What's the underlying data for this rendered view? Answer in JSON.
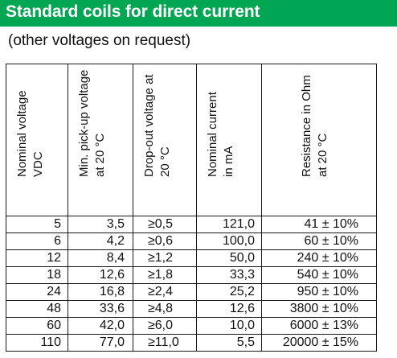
{
  "colors": {
    "banner": "#00a651",
    "text": "#111111",
    "rule": "#1a1a1a"
  },
  "title": "Standard coils for direct current",
  "subtitle": "(other voltages on request)",
  "table": {
    "headers": [
      {
        "line1": "Nominal voltage",
        "line2": "VDC"
      },
      {
        "line1": "Min. pick-up voltage",
        "line2": "at 20 °C"
      },
      {
        "line1": "Drop-out voltage at",
        "line2": "20 °C"
      },
      {
        "line1": "Nominal current",
        "line2": "in mA"
      },
      {
        "line1": "Resistance in Ohm",
        "line2": "at 20 °C"
      }
    ],
    "rows": [
      [
        "5",
        "3,5",
        "≥0,5",
        "121,0",
        "41 ± 10%"
      ],
      [
        "6",
        "4,2",
        "≥0,6",
        "100,0",
        "60 ± 10%"
      ],
      [
        "12",
        "8,4",
        "≥1,2",
        "50,0",
        "240 ± 10%"
      ],
      [
        "18",
        "12,6",
        "≥1,8",
        "33,3",
        "540 ± 10%"
      ],
      [
        "24",
        "16,8",
        "≥2,4",
        "25,2",
        "950 ± 10%"
      ],
      [
        "48",
        "33,6",
        "≥4,8",
        "12,6",
        "3800 ± 10%"
      ],
      [
        "60",
        "42,0",
        "≥6,0",
        "10,0",
        "6000 ± 13%"
      ],
      [
        "110",
        "77,0",
        "≥11,0",
        "5,5",
        "20000 ± 15%"
      ]
    ]
  }
}
